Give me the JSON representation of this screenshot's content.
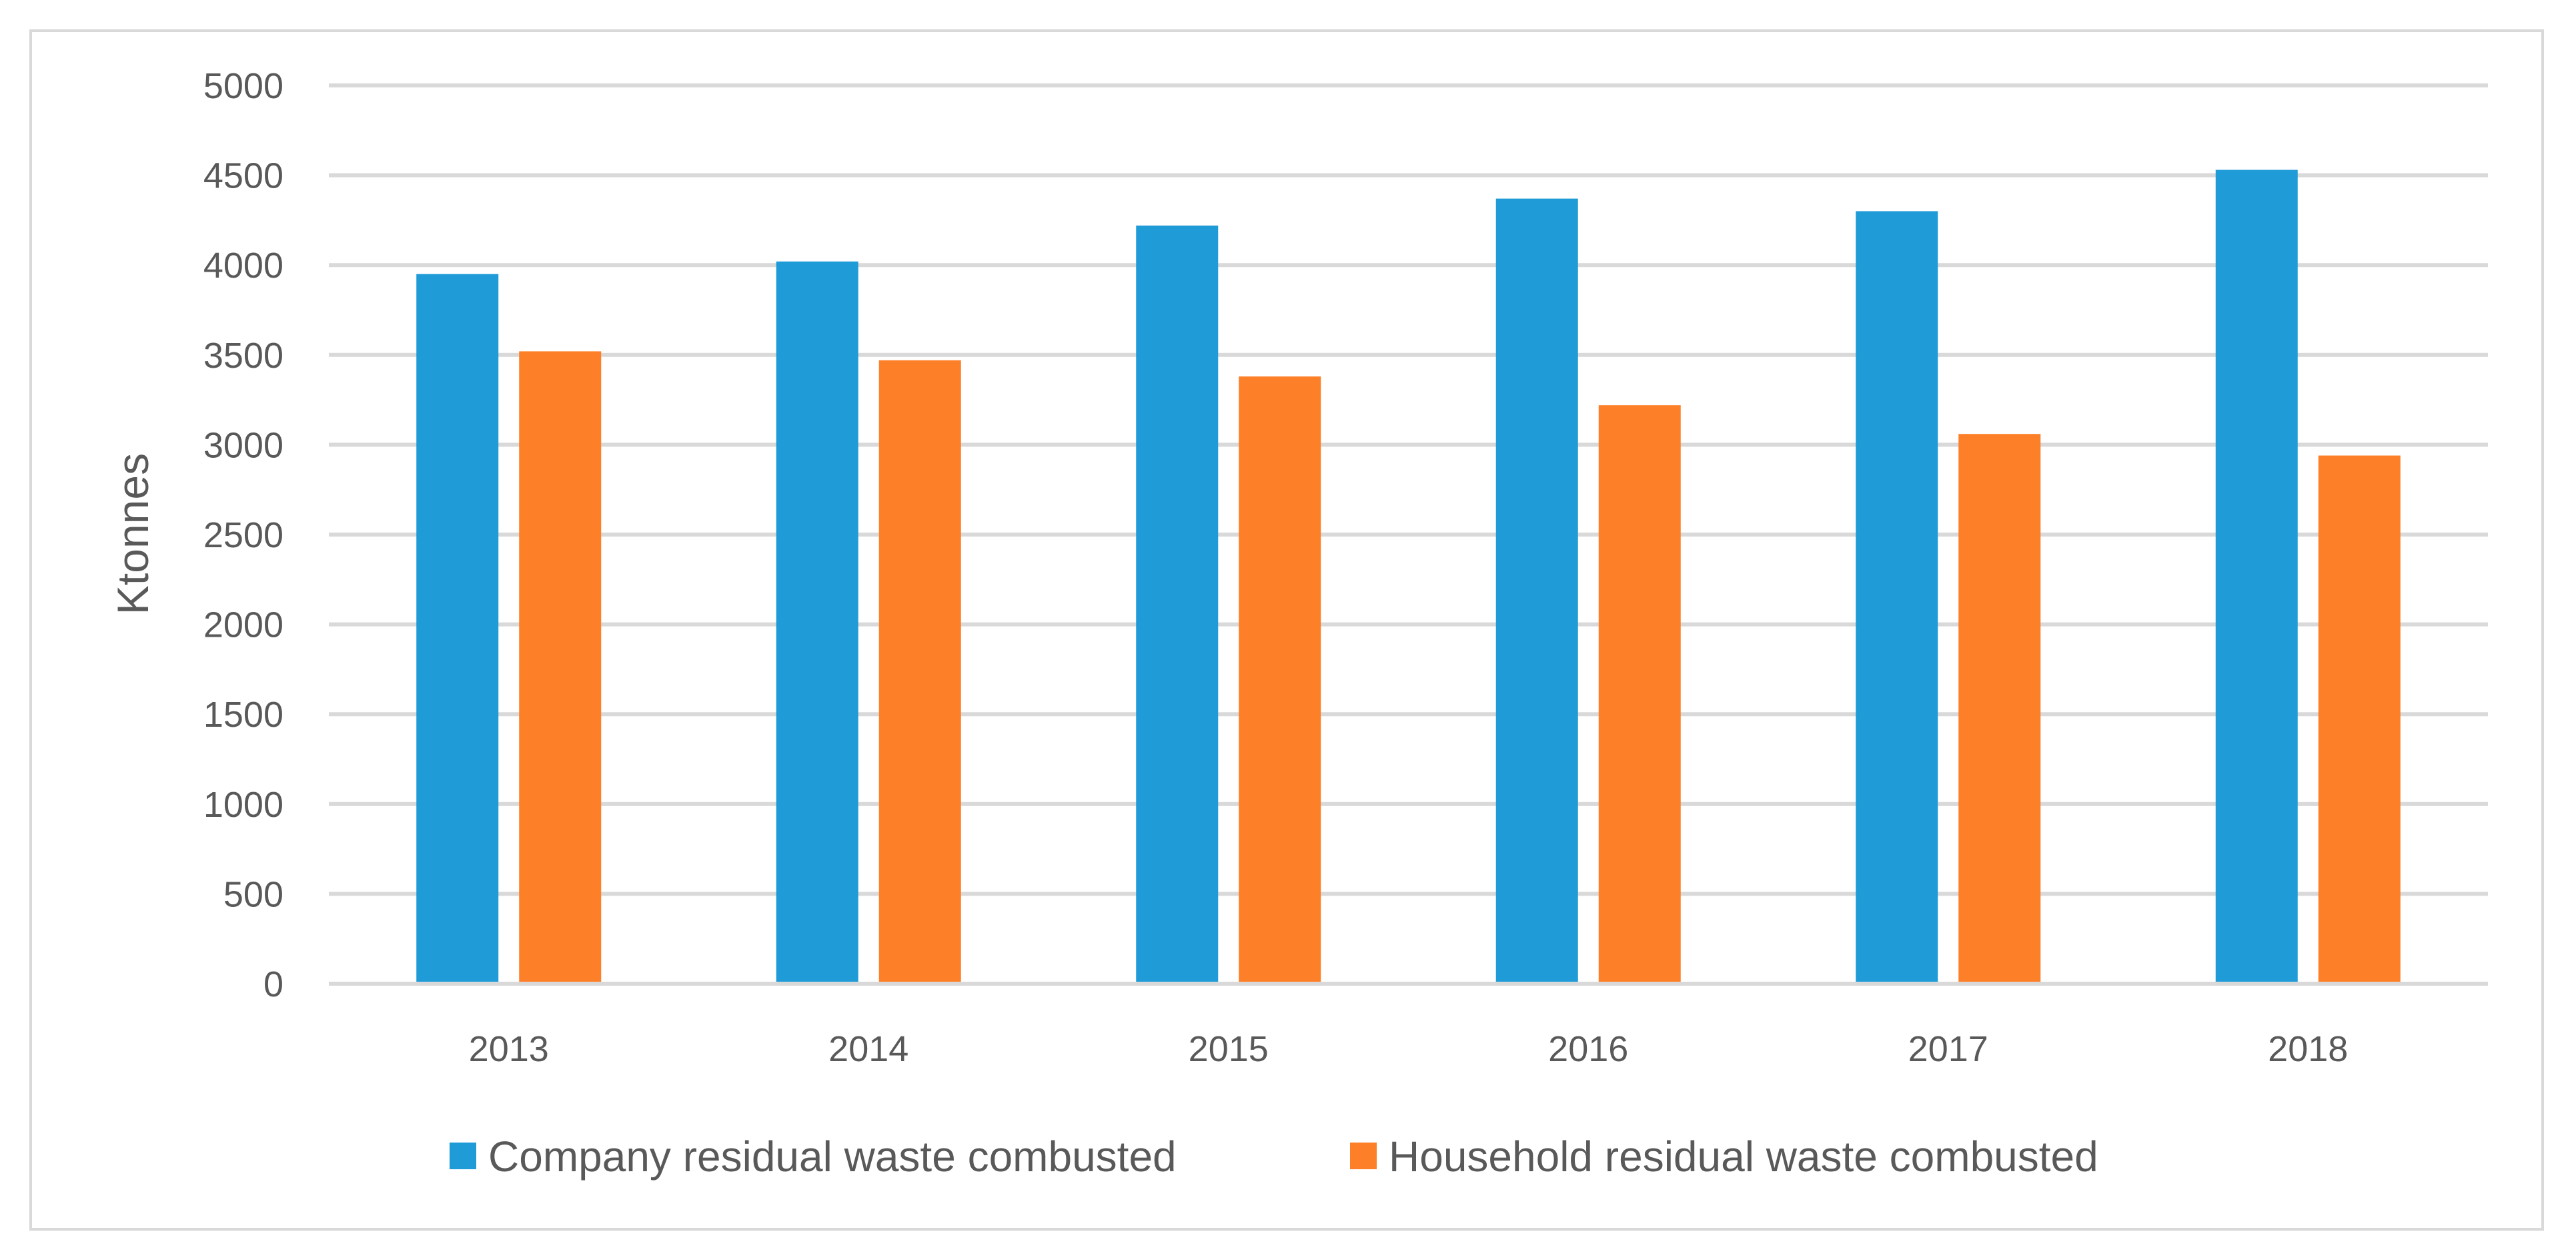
{
  "chart_data": {
    "type": "bar",
    "title": "",
    "xlabel": "",
    "ylabel": "Ktonnes",
    "ylim": [
      0,
      5000
    ],
    "yticks": [
      0,
      500,
      1000,
      1500,
      2000,
      2500,
      3000,
      3500,
      4000,
      4500,
      5000
    ],
    "grid": true,
    "legend_position": "bottom",
    "categories": [
      "2013",
      "2014",
      "2015",
      "2016",
      "2017",
      "2018"
    ],
    "series": [
      {
        "name": "Company residual waste combusted",
        "color": "#1f9bd7",
        "values": [
          3950,
          4020,
          4220,
          4370,
          4300,
          4530
        ]
      },
      {
        "name": "Household residual waste combusted",
        "color": "#fd7f28",
        "values": [
          3520,
          3470,
          3380,
          3220,
          3060,
          2940
        ]
      }
    ]
  }
}
